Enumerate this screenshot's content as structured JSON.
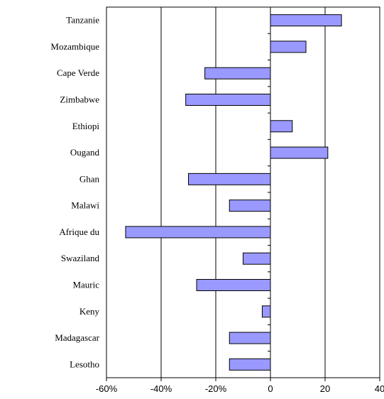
{
  "chart_data": {
    "type": "bar",
    "orientation": "horizontal",
    "title": "",
    "xlabel": "",
    "ylabel": "",
    "categories": [
      "Tanzanie",
      "Mozambique",
      "Cape Verde",
      "Zimbabwe",
      "Ethiopi",
      "Ougand",
      "Ghan",
      "Malawi",
      "Afrique du",
      "Swaziland",
      "Mauric",
      "Keny",
      "Madagascar",
      "Lesotho"
    ],
    "values": [
      26,
      13,
      -24,
      -31,
      8,
      21,
      -30,
      -15,
      -53,
      -10,
      -27,
      -3,
      -15,
      -15
    ],
    "xlim": [
      -60,
      40
    ],
    "x_ticks": [
      -60,
      -40,
      -20,
      0,
      20,
      40
    ],
    "x_tick_labels": [
      "-60%",
      "-40%",
      "-20%",
      "0",
      "20",
      "40"
    ],
    "grid": "vertical",
    "legend": "none",
    "colors": {
      "bar_fill": "#9999ff",
      "bar_stroke": "#000000",
      "grid": "#000000",
      "background": "#ffffff"
    }
  }
}
